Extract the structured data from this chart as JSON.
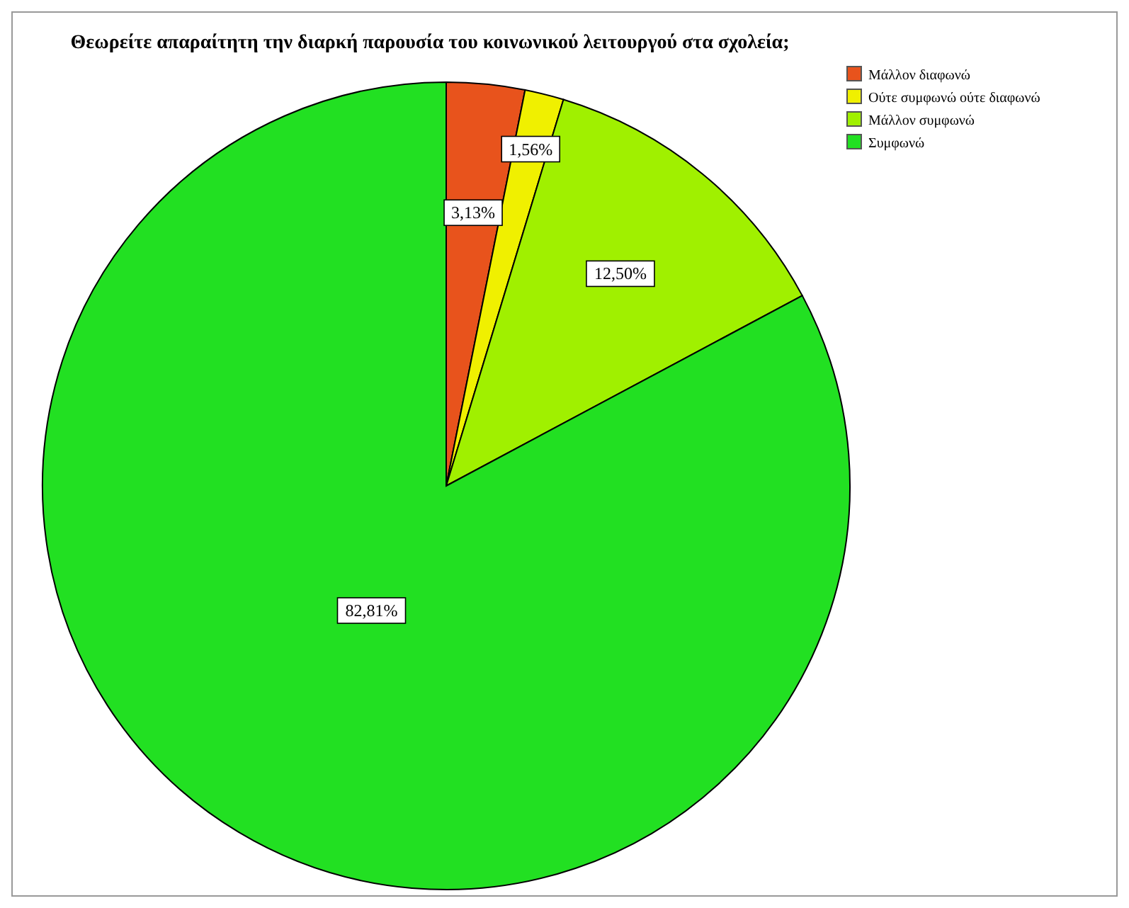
{
  "chart_data": {
    "type": "pie",
    "title": "Θεωρείτε απαραίτητη την διαρκή παρουσία του κοινωνικού λειτουργού στα σχολεία;",
    "categories": [
      "Μάλλον διαφωνώ",
      "Ούτε συμφωνώ ούτε διαφωνώ",
      "Μάλλον συμφωνώ",
      "Συμφωνώ"
    ],
    "values": [
      3.13,
      1.56,
      12.5,
      82.81
    ],
    "colors": [
      "#e8531c",
      "#f0f000",
      "#a0f000",
      "#22e022"
    ],
    "value_labels": [
      "3,13%",
      "1,56%",
      "12,50%",
      "82,81%"
    ],
    "legend": "top right"
  }
}
